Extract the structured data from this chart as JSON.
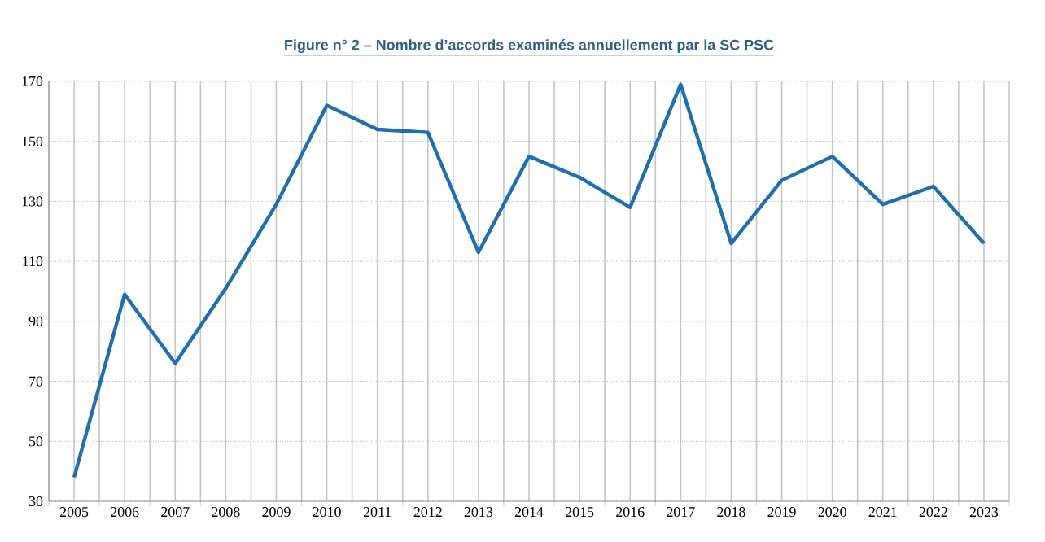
{
  "chart_data": {
    "type": "line",
    "title": "Figure n° 2 – Nombre d’accords examinés annuellement par la SC PSC",
    "categories": [
      "2005",
      "2006",
      "2007",
      "2008",
      "2009",
      "2010",
      "2011",
      "2012",
      "2013",
      "2014",
      "2015",
      "2016",
      "2017",
      "2018",
      "2019",
      "2020",
      "2021",
      "2022",
      "2023"
    ],
    "series": [
      {
        "color": "#1f6fb0",
        "values": [
          38,
          99,
          76,
          101,
          129,
          162,
          154,
          153,
          113,
          145,
          138,
          128,
          169,
          116,
          137,
          145,
          129,
          135,
          116
        ]
      }
    ],
    "ylim": [
      30,
      170
    ],
    "yticks": [
      30,
      50,
      70,
      90,
      110,
      130,
      150,
      170
    ],
    "grid": true,
    "marker": "none",
    "line_style": "solid"
  }
}
